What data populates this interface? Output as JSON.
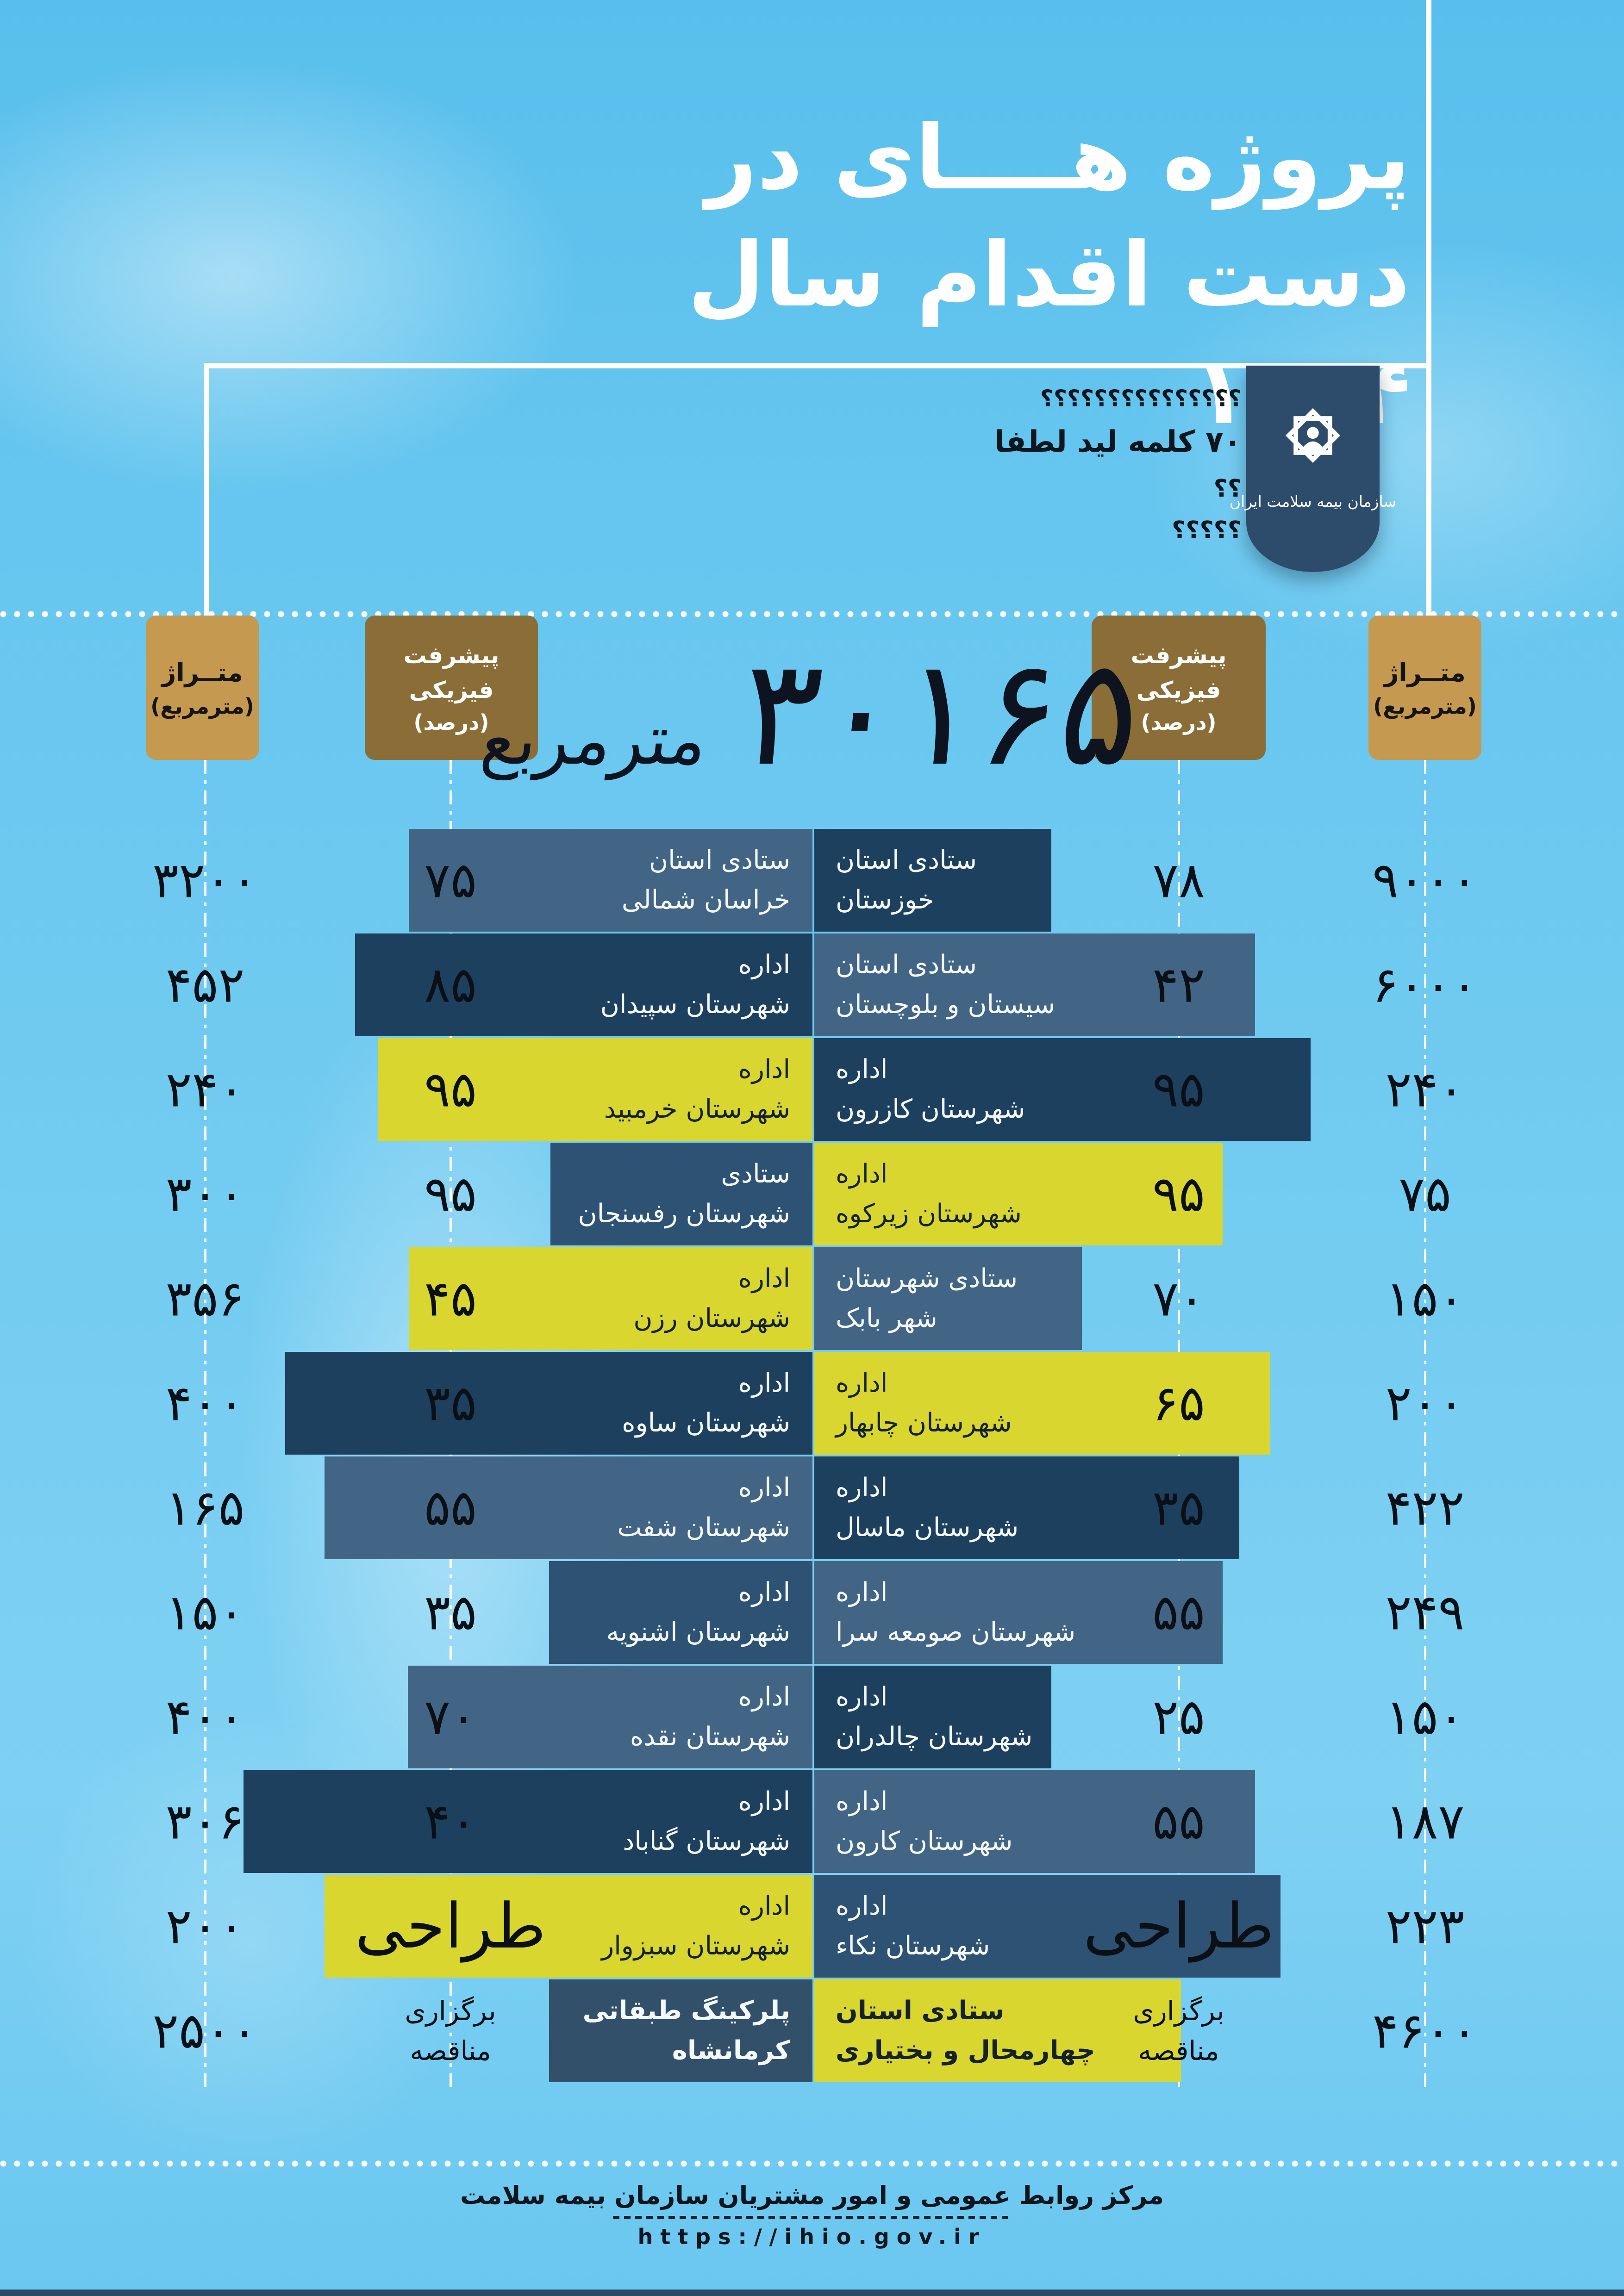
{
  "title": {
    "line1": "پروژه هــــای در",
    "line2": "دست اقدام سال ۱۴۰۴"
  },
  "lead_notes": {
    "line1": "؟؟؟؟؟؟؟؟؟؟؟؟؟؟؟",
    "line2": "۷۰ کلمه لید لطفا",
    "line3": "؟؟",
    "line4": "؟؟؟؟؟"
  },
  "logo": {
    "org_name": "سازمان بیمه سلامت ایران"
  },
  "column_headers": {
    "area_label": "متــراژ",
    "area_unit": "(مترمربع)",
    "progress_label": "پیشرفت فیزیکی",
    "progress_unit": "(درصد)"
  },
  "total": {
    "display": "۳۰۱۶۵",
    "unit": "مترمربع",
    "value": 30165
  },
  "footer": {
    "org_line": "مرکز روابط عمومی و امور مشتریان سازمان بیمه سلامت",
    "url": "https://ihio.gov.ir"
  },
  "colors": {
    "background": "#6cc8f0",
    "ribbon_navy": "#2d4c6b",
    "badge_tan": "#c5994f",
    "badge_olive": "#8b6e37",
    "bar_navy": "#1e405f",
    "bar_slate": "#426585",
    "bar_mid": "#2e5273",
    "bar_yellow": "#d9d630",
    "number_ink": "#0b1016"
  },
  "chart_data": {
    "type": "bar",
    "title": "پروژه های در دست اقدام سال ۱۴۰۴",
    "subtitle_total": "۳۰۱۶۵ مترمربع",
    "columns": {
      "area": "متراژ (مترمربع)",
      "progress": "پیشرفت فیزیکی (درصد)"
    },
    "layout": "diverging-center",
    "rows": [
      {
        "left": {
          "label": [
            "ستادی استان",
            "خراسان شمالی"
          ],
          "progress": "۷۵",
          "progress_style": "num",
          "area": "۳۲۰۰",
          "color": "slate",
          "bar": 872
        },
        "right": {
          "label": [
            "ستادی استان",
            "خوزستان"
          ],
          "progress": "۷۸",
          "progress_style": "num",
          "area": "۹۰۰۰",
          "color": "navy",
          "bar": 512
        }
      },
      {
        "left": {
          "label": [
            "اداره",
            "شهرستان سپیدان"
          ],
          "progress": "۸۵",
          "progress_style": "num",
          "area": "۴۵۲",
          "color": "navy",
          "bar": 988
        },
        "right": {
          "label": [
            "ستادی استان",
            "سیستان و بلوچستان"
          ],
          "progress": "۴۲",
          "progress_style": "num",
          "area": "۶۰۰۰",
          "color": "slate",
          "bar": 952
        }
      },
      {
        "left": {
          "label": [
            "اداره",
            "شهرستان خرمبید"
          ],
          "progress": "۹۵",
          "progress_style": "num",
          "area": "۲۴۰",
          "color": "yellow",
          "bar": 939
        },
        "right": {
          "label": [
            "اداره",
            "شهرستان کازرون"
          ],
          "progress": "۹۵",
          "progress_style": "num",
          "area": "۲۴۰",
          "color": "navy",
          "bar": 1072
        }
      },
      {
        "left": {
          "label": [
            "ستادی",
            "شهرستان رفسنجان"
          ],
          "progress": "۹۵",
          "progress_style": "num",
          "area": "۳۰۰",
          "color": "mid",
          "bar": 566
        },
        "right": {
          "label": [
            "اداره",
            "شهرستان زیرکوه"
          ],
          "progress": "۹۵",
          "progress_style": "num",
          "area": "۷۵",
          "color": "yellow",
          "bar": 882
        }
      },
      {
        "left": {
          "label": [
            "اداره",
            "شهرستان رزن"
          ],
          "progress": "۴۵",
          "progress_style": "num",
          "area": "۳۵۶",
          "color": "yellow",
          "bar": 872
        },
        "right": {
          "label": [
            "ستادی شهرستان",
            "شهر بابک"
          ],
          "progress": "۷۰",
          "progress_style": "num",
          "area": "۱۵۰",
          "color": "slate",
          "bar": 578
        }
      },
      {
        "left": {
          "label": [
            "اداره",
            "شهرستان ساوه"
          ],
          "progress": "۳۵",
          "progress_style": "num",
          "area": "۴۰۰",
          "color": "navy",
          "bar": 1139
        },
        "right": {
          "label": [
            "اداره",
            "شهرستان چابهار"
          ],
          "progress": "۶۵",
          "progress_style": "num",
          "area": "۲۰۰",
          "color": "yellow",
          "bar": 984
        }
      },
      {
        "left": {
          "label": [
            "اداره",
            "شهرستان شفت"
          ],
          "progress": "۵۵",
          "progress_style": "num",
          "area": "۱۶۵",
          "color": "slate",
          "bar": 1054
        },
        "right": {
          "label": [
            "اداره",
            "شهرستان ماسال"
          ],
          "progress": "۳۵",
          "progress_style": "num",
          "area": "۴۲۲",
          "color": "navy",
          "bar": 918
        }
      },
      {
        "left": {
          "label": [
            "اداره",
            "شهرستان اشنویه"
          ],
          "progress": "۳۵",
          "progress_style": "num",
          "area": "۱۵۰",
          "color": "mid",
          "bar": 569
        },
        "right": {
          "label": [
            "اداره",
            "شهرستان صومعه سرا"
          ],
          "progress": "۵۵",
          "progress_style": "num",
          "area": "۲۴۹",
          "color": "slate",
          "bar": 882
        }
      },
      {
        "left": {
          "label": [
            "اداره",
            "شهرستان نقده"
          ],
          "progress": "۷۰",
          "progress_style": "num",
          "area": "۴۰۰",
          "color": "slate",
          "bar": 874
        },
        "right": {
          "label": [
            "اداره",
            "شهرستان چالدران"
          ],
          "progress": "۲۵",
          "progress_style": "num",
          "area": "۱۵۰",
          "color": "navy",
          "bar": 512
        }
      },
      {
        "left": {
          "label": [
            "اداره",
            "شهرستان گناباد"
          ],
          "progress": "۴۰",
          "progress_style": "num",
          "area": "۳۰۶",
          "color": "navy",
          "bar": 1229
        },
        "right": {
          "label": [
            "اداره",
            "شهرستان کارون"
          ],
          "progress": "۵۵",
          "progress_style": "num",
          "area": "۱۸۷",
          "color": "slate",
          "bar": 952
        }
      },
      {
        "left": {
          "label": [
            "اداره",
            "شهرستان سبزوار"
          ],
          "progress": "طراحی",
          "progress_style": "big",
          "area": "۲۰۰",
          "color": "yellow",
          "bar": 1054
        },
        "right": {
          "label": [
            "اداره",
            "شهرستان نکاء"
          ],
          "progress": "طراحی",
          "progress_style": "big",
          "area": "۲۲۳",
          "color": "mid",
          "bar": 1007
        }
      },
      {
        "left": {
          "label": [
            "پلرکینگ طبقاتی",
            "کرمانشاه"
          ],
          "progress": [
            "برگزاری",
            "مناقصه"
          ],
          "progress_style": "small",
          "area": "۲۵۰۰",
          "color": "steel",
          "bar": 569,
          "bold": true
        },
        "right": {
          "label": [
            "ستادی استان",
            "چهارمحال و بختیاری"
          ],
          "progress": [
            "برگزاری",
            "مناقصه"
          ],
          "progress_style": "small",
          "area": "۴۶۰۰",
          "color": "yellow",
          "bar": 792,
          "bold": true
        }
      }
    ]
  }
}
